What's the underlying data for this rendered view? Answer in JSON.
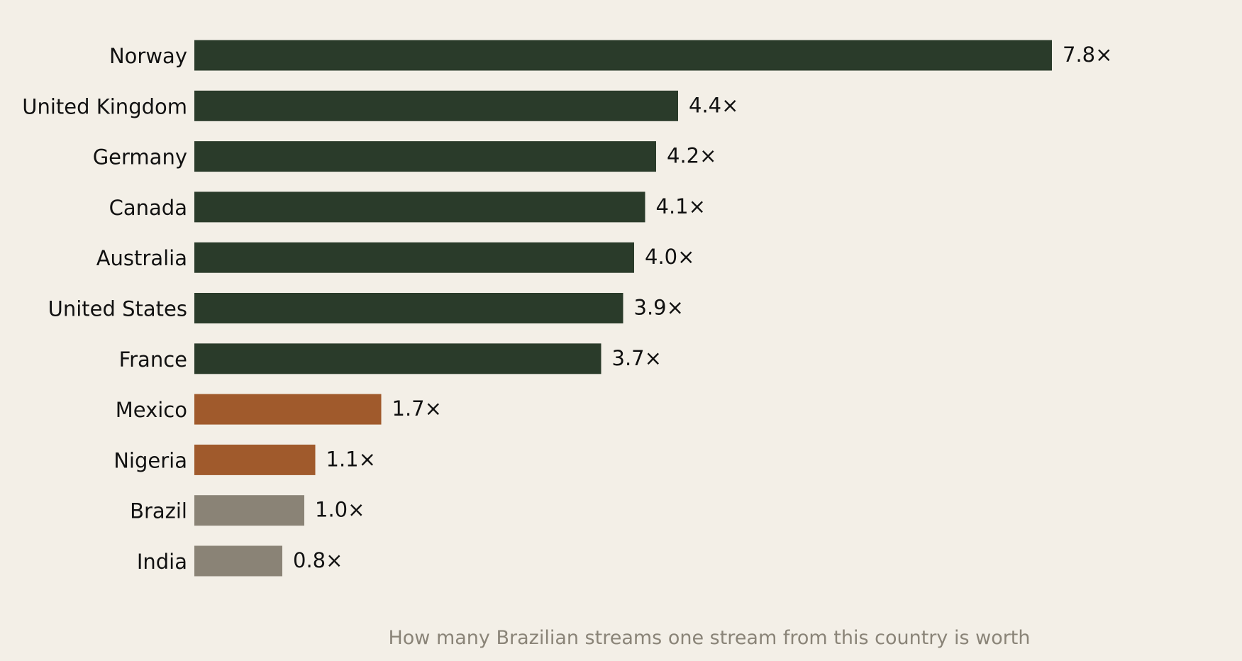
{
  "chart_data": {
    "type": "bar",
    "orientation": "horizontal",
    "categories": [
      "Norway",
      "United Kingdom",
      "Germany",
      "Canada",
      "Australia",
      "United States",
      "France",
      "Mexico",
      "Nigeria",
      "Brazil",
      "India"
    ],
    "values": [
      7.8,
      4.4,
      4.2,
      4.1,
      4.0,
      3.9,
      3.7,
      1.7,
      1.1,
      1.0,
      0.8
    ],
    "value_labels": [
      "7.8×",
      "4.4×",
      "4.2×",
      "4.1×",
      "4.0×",
      "3.9×",
      "3.7×",
      "1.7×",
      "1.1×",
      "1.0×",
      "0.8×"
    ],
    "bar_colors": [
      "#2a3b2a",
      "#2a3b2a",
      "#2a3b2a",
      "#2a3b2a",
      "#2a3b2a",
      "#2a3b2a",
      "#2a3b2a",
      "#a05a2c",
      "#a05a2c",
      "#8a8376",
      "#8a8376"
    ],
    "title": "",
    "xlabel": "How many Brazilian streams one stream from this country is worth",
    "ylabel": "",
    "xlim": [
      0,
      7.8
    ],
    "grid": false,
    "legend": "none",
    "background": "#f3efe7"
  }
}
